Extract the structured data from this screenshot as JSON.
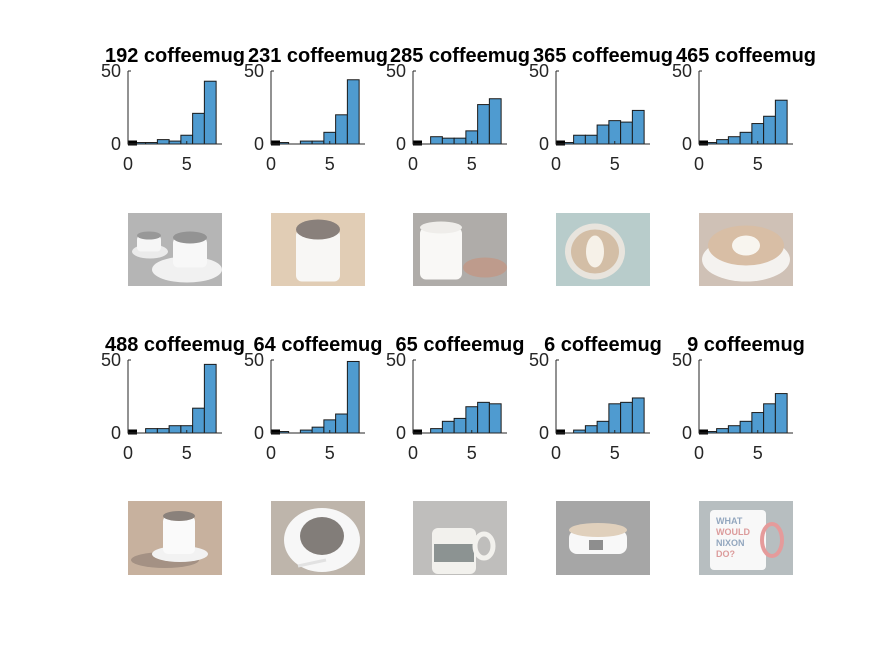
{
  "figure": {
    "background": "#ffffff",
    "bar_color": "#4f9bd0",
    "bar_edge": "#1a1a1a",
    "image_opacity": 0.55
  },
  "chart_data": [
    {
      "type": "bar",
      "title": "192 coffeemug",
      "xlim": [
        0,
        8
      ],
      "ylim": [
        0,
        50
      ],
      "xticks": [
        "0",
        "5"
      ],
      "yticks": [
        "0",
        "50"
      ],
      "x": [
        1,
        2,
        3,
        4,
        5,
        6,
        7
      ],
      "values": [
        1,
        1,
        3,
        2,
        6,
        21,
        43
      ]
    },
    {
      "type": "bar",
      "title": "231 coffeemug",
      "xlim": [
        0,
        8
      ],
      "ylim": [
        0,
        50
      ],
      "xticks": [
        "0",
        "5"
      ],
      "yticks": [
        "0",
        "50"
      ],
      "x": [
        1,
        2,
        3,
        4,
        5,
        6,
        7
      ],
      "values": [
        1,
        0,
        2,
        2,
        8,
        20,
        44
      ]
    },
    {
      "type": "bar",
      "title": "285 coffeemug",
      "xlim": [
        0,
        8
      ],
      "ylim": [
        0,
        50
      ],
      "xticks": [
        "0",
        "5"
      ],
      "yticks": [
        "0",
        "50"
      ],
      "x": [
        1,
        2,
        3,
        4,
        5,
        6,
        7
      ],
      "values": [
        0,
        5,
        4,
        4,
        9,
        27,
        31
      ]
    },
    {
      "type": "bar",
      "title": "365 coffeemug",
      "xlim": [
        0,
        8
      ],
      "ylim": [
        0,
        50
      ],
      "xticks": [
        "0",
        "5"
      ],
      "yticks": [
        "0",
        "50"
      ],
      "x": [
        1,
        2,
        3,
        4,
        5,
        6,
        7
      ],
      "values": [
        1,
        6,
        6,
        13,
        16,
        15,
        23
      ]
    },
    {
      "type": "bar",
      "title": "465 coffeemug",
      "xlim": [
        0,
        8
      ],
      "ylim": [
        0,
        50
      ],
      "xticks": [
        "0",
        "5"
      ],
      "yticks": [
        "0",
        "50"
      ],
      "x": [
        1,
        2,
        3,
        4,
        5,
        6,
        7
      ],
      "values": [
        1,
        3,
        5,
        8,
        14,
        19,
        30
      ]
    },
    {
      "type": "bar",
      "title": "488 coffeemug",
      "xlim": [
        0,
        8
      ],
      "ylim": [
        0,
        50
      ],
      "xticks": [
        "0",
        "5"
      ],
      "yticks": [
        "0",
        "50"
      ],
      "x": [
        1,
        2,
        3,
        4,
        5,
        6,
        7
      ],
      "values": [
        0,
        3,
        3,
        5,
        5,
        17,
        47
      ]
    },
    {
      "type": "bar",
      "title": "64 coffeemug",
      "xlim": [
        0,
        8
      ],
      "ylim": [
        0,
        50
      ],
      "xticks": [
        "0",
        "5"
      ],
      "yticks": [
        "0",
        "50"
      ],
      "x": [
        1,
        2,
        3,
        4,
        5,
        6,
        7
      ],
      "values": [
        1,
        0,
        2,
        4,
        9,
        13,
        49
      ]
    },
    {
      "type": "bar",
      "title": "65 coffeemug",
      "xlim": [
        0,
        8
      ],
      "ylim": [
        0,
        50
      ],
      "xticks": [
        "0",
        "5"
      ],
      "yticks": [
        "0",
        "50"
      ],
      "x": [
        1,
        2,
        3,
        4,
        5,
        6,
        7
      ],
      "values": [
        0,
        3,
        8,
        10,
        18,
        21,
        20
      ]
    },
    {
      "type": "bar",
      "title": "6 coffeemug",
      "xlim": [
        0,
        8
      ],
      "ylim": [
        0,
        50
      ],
      "xticks": [
        "0",
        "5"
      ],
      "yticks": [
        "0",
        "50"
      ],
      "x": [
        1,
        2,
        3,
        4,
        5,
        6,
        7
      ],
      "values": [
        0,
        2,
        5,
        8,
        20,
        21,
        24
      ]
    },
    {
      "type": "bar",
      "title": "9 coffeemug",
      "xlim": [
        0,
        8
      ],
      "ylim": [
        0,
        50
      ],
      "xticks": [
        "0",
        "5"
      ],
      "yticks": [
        "0",
        "50"
      ],
      "x": [
        1,
        2,
        3,
        4,
        5,
        6,
        7
      ],
      "values": [
        1,
        3,
        5,
        8,
        14,
        20,
        27
      ]
    }
  ],
  "images": [
    {
      "subject": "two-white-cups-on-saucers-grayscale"
    },
    {
      "subject": "white-mug-black-coffee"
    },
    {
      "subject": "white-mug-with-snacks"
    },
    {
      "subject": "latte-art-leaf"
    },
    {
      "subject": "latte-art-heart"
    },
    {
      "subject": "mug-on-coffee-beans"
    },
    {
      "subject": "cup-on-saucer-with-spoon"
    },
    {
      "subject": "patterned-mug"
    },
    {
      "subject": "cup-with-milk-coffee"
    },
    {
      "subject": "text-mug",
      "text": [
        "WHAT",
        "WOULD",
        "NIXON",
        "DO?"
      ]
    }
  ]
}
